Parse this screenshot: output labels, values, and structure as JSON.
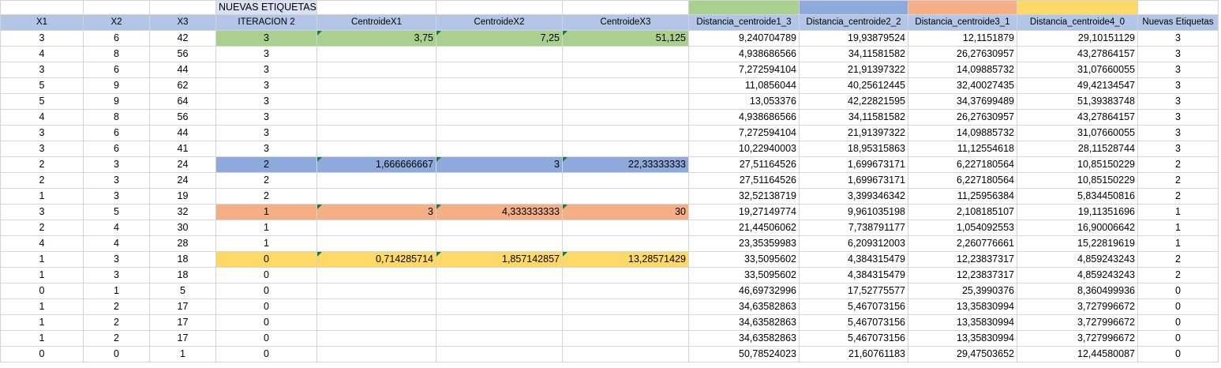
{
  "title_cell": "NUEVAS ETIQUETAS",
  "colors": {
    "green": "#a9d08e",
    "blue": "#8ea9db",
    "orange": "#f4b084",
    "yellow": "#ffd966",
    "header": "#b4c6e7"
  },
  "headers": [
    "X1",
    "X2",
    "X3",
    "ITERACION 2",
    "CentroideX1",
    "CentroideX2",
    "CentroideX3",
    "Distancia_centroide1_3",
    "Distancia_centroide2_2",
    "Distancia_centroide3_1",
    "Distancia_centroide4_0",
    "Nuevas Etiquetas"
  ],
  "rows": [
    [
      "3",
      "6",
      "42",
      "3",
      "3,75",
      "7,25",
      "51,125",
      "9,240704789",
      "19,93879524",
      "12,1151879",
      "29,10151129",
      "3"
    ],
    [
      "4",
      "8",
      "56",
      "3",
      "",
      "",
      "",
      "4,938686566",
      "34,11581582",
      "26,27630957",
      "43,27864157",
      "3"
    ],
    [
      "3",
      "6",
      "44",
      "3",
      "",
      "",
      "",
      "7,272594104",
      "21,91397322",
      "14,09885732",
      "31,07660055",
      "3"
    ],
    [
      "5",
      "9",
      "62",
      "3",
      "",
      "",
      "",
      "11,0856044",
      "40,25612445",
      "32,40027435",
      "49,42134547",
      "3"
    ],
    [
      "5",
      "9",
      "64",
      "3",
      "",
      "",
      "",
      "13,053376",
      "42,22821595",
      "34,37699489",
      "51,39383748",
      "3"
    ],
    [
      "4",
      "8",
      "56",
      "3",
      "",
      "",
      "",
      "4,938686566",
      "34,11581582",
      "26,27630957",
      "43,27864157",
      "3"
    ],
    [
      "3",
      "6",
      "44",
      "3",
      "",
      "",
      "",
      "7,272594104",
      "21,91397322",
      "14,09885732",
      "31,07660055",
      "3"
    ],
    [
      "3",
      "6",
      "41",
      "3",
      "",
      "",
      "",
      "10,22940003",
      "18,95315863",
      "11,12554618",
      "28,11528744",
      "3"
    ],
    [
      "2",
      "3",
      "24",
      "2",
      "1,666666667",
      "3",
      "22,33333333",
      "27,51164526",
      "1,699673171",
      "6,227180564",
      "10,85150229",
      "2"
    ],
    [
      "2",
      "3",
      "24",
      "2",
      "",
      "",
      "",
      "27,51164526",
      "1,699673171",
      "6,227180564",
      "10,85150229",
      "2"
    ],
    [
      "1",
      "3",
      "19",
      "2",
      "",
      "",
      "",
      "32,52138719",
      "3,399346342",
      "11,25956384",
      "5,834450816",
      "2"
    ],
    [
      "3",
      "5",
      "32",
      "1",
      "3",
      "4,333333333",
      "30",
      "19,27149774",
      "9,961035198",
      "2,108185107",
      "19,11351696",
      "1"
    ],
    [
      "2",
      "4",
      "30",
      "1",
      "",
      "",
      "",
      "21,44506062",
      "7,738791177",
      "1,054092553",
      "16,90006642",
      "1"
    ],
    [
      "4",
      "4",
      "28",
      "1",
      "",
      "",
      "",
      "23,35359983",
      "6,209312003",
      "2,260776661",
      "15,22819619",
      "1"
    ],
    [
      "1",
      "3",
      "18",
      "0",
      "0,714285714",
      "1,857142857",
      "13,28571429",
      "33,5095602",
      "4,384315479",
      "12,23837317",
      "4,859243243",
      "2"
    ],
    [
      "1",
      "3",
      "18",
      "0",
      "",
      "",
      "",
      "33,5095602",
      "4,384315479",
      "12,23837317",
      "4,859243243",
      "2"
    ],
    [
      "0",
      "1",
      "5",
      "0",
      "",
      "",
      "",
      "46,69732996",
      "17,52775577",
      "25,3990376",
      "8,360499936",
      "0"
    ],
    [
      "1",
      "2",
      "17",
      "0",
      "",
      "",
      "",
      "34,63582863",
      "5,467073156",
      "13,35830994",
      "3,727996672",
      "0"
    ],
    [
      "1",
      "2",
      "17",
      "0",
      "",
      "",
      "",
      "34,63582863",
      "5,467073156",
      "13,35830994",
      "3,727996672",
      "0"
    ],
    [
      "1",
      "2",
      "17",
      "0",
      "",
      "",
      "",
      "34,63582863",
      "5,467073156",
      "13,35830994",
      "3,727996672",
      "0"
    ],
    [
      "0",
      "0",
      "1",
      "0",
      "",
      "",
      "",
      "50,78524023",
      "21,60761183",
      "29,47503652",
      "12,44580087",
      "0"
    ]
  ]
}
